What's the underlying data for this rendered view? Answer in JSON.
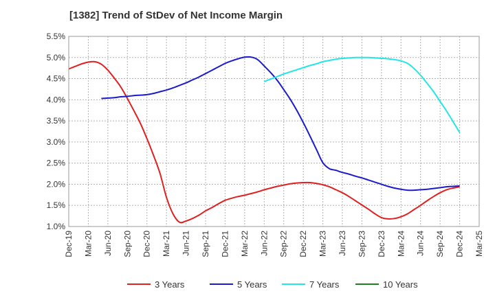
{
  "title": "[1382]  Trend of StDev of Net Income Margin",
  "chart_data": {
    "type": "line",
    "title": "[1382]  Trend of StDev of Net Income Margin",
    "xlabel": "",
    "ylabel": "",
    "ylim": [
      1.0,
      5.5
    ],
    "y_ticks": [
      "1.0%",
      "1.5%",
      "2.0%",
      "2.5%",
      "3.0%",
      "3.5%",
      "4.0%",
      "4.5%",
      "5.0%",
      "5.5%"
    ],
    "x_ticks": [
      "Dec-19",
      "Mar-20",
      "Jun-20",
      "Sep-20",
      "Dec-20",
      "Mar-21",
      "Jun-21",
      "Sep-21",
      "Dec-21",
      "Mar-22",
      "Jun-22",
      "Sep-22",
      "Dec-22",
      "Mar-23",
      "Jun-23",
      "Sep-23",
      "Dec-23",
      "Mar-24",
      "Jun-24",
      "Sep-24",
      "Dec-24",
      "Mar-25"
    ],
    "grid": true,
    "legend_position": "bottom",
    "series": [
      {
        "name": "3 Years",
        "color": "#e02020",
        "x": [
          "Dec-19",
          "Jan-20",
          "Feb-20",
          "Mar-20",
          "Apr-20",
          "May-20",
          "Jun-20",
          "Jul-20",
          "Aug-20",
          "Sep-20",
          "Oct-20",
          "Nov-20",
          "Dec-20",
          "Jan-21",
          "Feb-21",
          "Mar-21",
          "Apr-21",
          "May-21",
          "Jun-21",
          "Jul-21",
          "Aug-21",
          "Sep-21",
          "Oct-21",
          "Nov-21",
          "Dec-21",
          "Jan-22",
          "Feb-22",
          "Mar-22",
          "Apr-22",
          "May-22",
          "Jun-22",
          "Jul-22",
          "Aug-22",
          "Sep-22",
          "Oct-22",
          "Nov-22",
          "Dec-22",
          "Jan-23",
          "Feb-23",
          "Mar-23",
          "Apr-23",
          "May-23",
          "Jun-23",
          "Jul-23",
          "Aug-23",
          "Sep-23",
          "Oct-23",
          "Nov-23",
          "Dec-23",
          "Jan-24",
          "Feb-24",
          "Mar-24",
          "Apr-24",
          "May-24",
          "Jun-24",
          "Jul-24",
          "Aug-24",
          "Sep-24",
          "Oct-24",
          "Nov-24",
          "Dec-24"
        ],
        "values": [
          4.73,
          4.79,
          4.85,
          4.89,
          4.9,
          4.84,
          4.7,
          4.51,
          4.3,
          4.03,
          3.74,
          3.44,
          3.08,
          2.69,
          2.26,
          1.69,
          1.3,
          1.1,
          1.13,
          1.19,
          1.27,
          1.37,
          1.45,
          1.54,
          1.62,
          1.67,
          1.71,
          1.74,
          1.78,
          1.82,
          1.87,
          1.91,
          1.95,
          1.98,
          2.01,
          2.03,
          2.04,
          2.04,
          2.02,
          1.99,
          1.94,
          1.87,
          1.8,
          1.71,
          1.61,
          1.51,
          1.41,
          1.3,
          1.21,
          1.18,
          1.19,
          1.23,
          1.3,
          1.4,
          1.5,
          1.61,
          1.71,
          1.8,
          1.87,
          1.91,
          1.94
        ]
      },
      {
        "name": "5 Years",
        "color": "#1a1acc",
        "x": [
          "May-20",
          "Jun-20",
          "Jul-20",
          "Aug-20",
          "Sep-20",
          "Oct-20",
          "Nov-20",
          "Dec-20",
          "Jan-21",
          "Feb-21",
          "Mar-21",
          "Apr-21",
          "May-21",
          "Jun-21",
          "Jul-21",
          "Aug-21",
          "Sep-21",
          "Oct-21",
          "Nov-21",
          "Dec-21",
          "Jan-22",
          "Feb-22",
          "Mar-22",
          "Apr-22",
          "May-22",
          "Jun-22",
          "Jul-22",
          "Aug-22",
          "Sep-22",
          "Oct-22",
          "Nov-22",
          "Dec-22",
          "Jan-23",
          "Feb-23",
          "Mar-23",
          "Apr-23",
          "May-23",
          "Jun-23",
          "Jul-23",
          "Aug-23",
          "Sep-23",
          "Oct-23",
          "Nov-23",
          "Dec-23",
          "Jan-24",
          "Feb-24",
          "Mar-24",
          "Apr-24",
          "May-24",
          "Jun-24",
          "Jul-24",
          "Aug-24",
          "Sep-24",
          "Oct-24",
          "Nov-24",
          "Dec-24"
        ],
        "values": [
          4.03,
          4.04,
          4.05,
          4.07,
          4.08,
          4.1,
          4.11,
          4.12,
          4.15,
          4.19,
          4.23,
          4.28,
          4.34,
          4.4,
          4.47,
          4.54,
          4.62,
          4.7,
          4.78,
          4.86,
          4.92,
          4.97,
          5.01,
          5.01,
          4.95,
          4.8,
          4.64,
          4.46,
          4.24,
          4.01,
          3.75,
          3.46,
          3.15,
          2.83,
          2.51,
          2.37,
          2.33,
          2.28,
          2.24,
          2.19,
          2.15,
          2.1,
          2.05,
          2.0,
          1.95,
          1.91,
          1.88,
          1.86,
          1.86,
          1.87,
          1.88,
          1.9,
          1.92,
          1.94,
          1.95,
          1.96
        ]
      },
      {
        "name": "7 Years",
        "color": "#22e6e6",
        "x": [
          "Jun-22",
          "Jul-22",
          "Aug-22",
          "Sep-22",
          "Oct-22",
          "Nov-22",
          "Dec-22",
          "Jan-23",
          "Feb-23",
          "Mar-23",
          "Apr-23",
          "May-23",
          "Jun-23",
          "Jul-23",
          "Aug-23",
          "Sep-23",
          "Oct-23",
          "Nov-23",
          "Dec-23",
          "Jan-24",
          "Feb-24",
          "Mar-24",
          "Apr-24",
          "May-24",
          "Jun-24",
          "Jul-24",
          "Aug-24",
          "Sep-24",
          "Oct-24",
          "Nov-24",
          "Dec-24"
        ],
        "values": [
          4.43,
          4.49,
          4.55,
          4.61,
          4.66,
          4.71,
          4.76,
          4.81,
          4.85,
          4.9,
          4.93,
          4.96,
          4.98,
          4.99,
          5.0,
          5.0,
          5.0,
          4.99,
          4.98,
          4.97,
          4.95,
          4.92,
          4.86,
          4.74,
          4.58,
          4.39,
          4.19,
          3.96,
          3.73,
          3.48,
          3.22
        ]
      },
      {
        "name": "10 Years",
        "color": "#1e7d1e",
        "x": [],
        "values": []
      }
    ]
  }
}
